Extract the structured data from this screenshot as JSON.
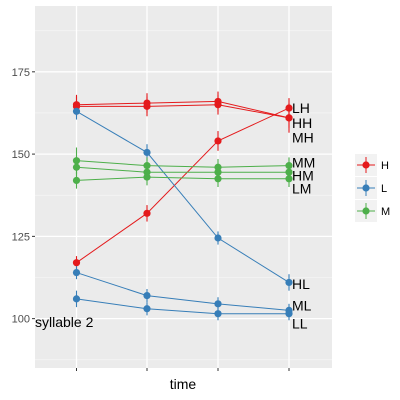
{
  "chart_data": {
    "type": "line",
    "xlabel": "time",
    "ylabel": "",
    "x": [
      1,
      2,
      3,
      4
    ],
    "x_tick_labels": [
      "",
      "",
      "",
      ""
    ],
    "ylim": [
      85,
      195
    ],
    "y_ticks": [
      100,
      125,
      150,
      175
    ],
    "grid": true,
    "legend_position": "right",
    "annotation": "syllable 2",
    "legend": [
      {
        "label": "H",
        "color": "#E41A1C"
      },
      {
        "label": "L",
        "color": "#377EB8"
      },
      {
        "label": "M",
        "color": "#4DAF4A"
      }
    ],
    "series": [
      {
        "label": "LH",
        "group": "H",
        "values": [
          117,
          132,
          154,
          164
        ],
        "errors": [
          2,
          2.5,
          3,
          3
        ]
      },
      {
        "label": "HH",
        "group": "H",
        "values": [
          165,
          165.5,
          166,
          161
        ],
        "errors": [
          3,
          3,
          3,
          3
        ]
      },
      {
        "label": "MH",
        "group": "H",
        "values": [
          164.5,
          164.5,
          165,
          161
        ],
        "errors": [
          3,
          3,
          3,
          4.5
        ]
      },
      {
        "label": "HL",
        "group": "L",
        "values": [
          163,
          150.5,
          124.5,
          111
        ],
        "errors": [
          2.5,
          2.5,
          2,
          2.5
        ]
      },
      {
        "label": "ML",
        "group": "L",
        "values": [
          114,
          107,
          104.5,
          102.5
        ],
        "errors": [
          2,
          2,
          2,
          2
        ]
      },
      {
        "label": "LL",
        "group": "L",
        "values": [
          106,
          103,
          101.5,
          101.5
        ],
        "errors": [
          2.5,
          2,
          2,
          2
        ]
      },
      {
        "label": "MM",
        "group": "M",
        "values": [
          148,
          146.5,
          146,
          146.5
        ],
        "errors": [
          4,
          2.5,
          2.5,
          2.5
        ]
      },
      {
        "label": "HM",
        "group": "M",
        "values": [
          146,
          144.5,
          144.5,
          144.5
        ],
        "errors": [
          3,
          2.5,
          2.5,
          2.5
        ]
      },
      {
        "label": "LM",
        "group": "M",
        "values": [
          142,
          143,
          142.5,
          142.5
        ],
        "errors": [
          2.5,
          2.5,
          2.5,
          2.5
        ]
      }
    ],
    "end_labels": [
      {
        "text": "LH",
        "value": 164
      },
      {
        "text": "HH",
        "value": 159.5
      },
      {
        "text": "MH",
        "value": 155
      },
      {
        "text": "MM",
        "value": 147.5
      },
      {
        "text": "HM",
        "value": 143.5
      },
      {
        "text": "LM",
        "value": 139.5
      },
      {
        "text": "HL",
        "value": 110.5
      },
      {
        "text": "ML",
        "value": 104
      },
      {
        "text": "LL",
        "value": 98.5
      }
    ]
  }
}
